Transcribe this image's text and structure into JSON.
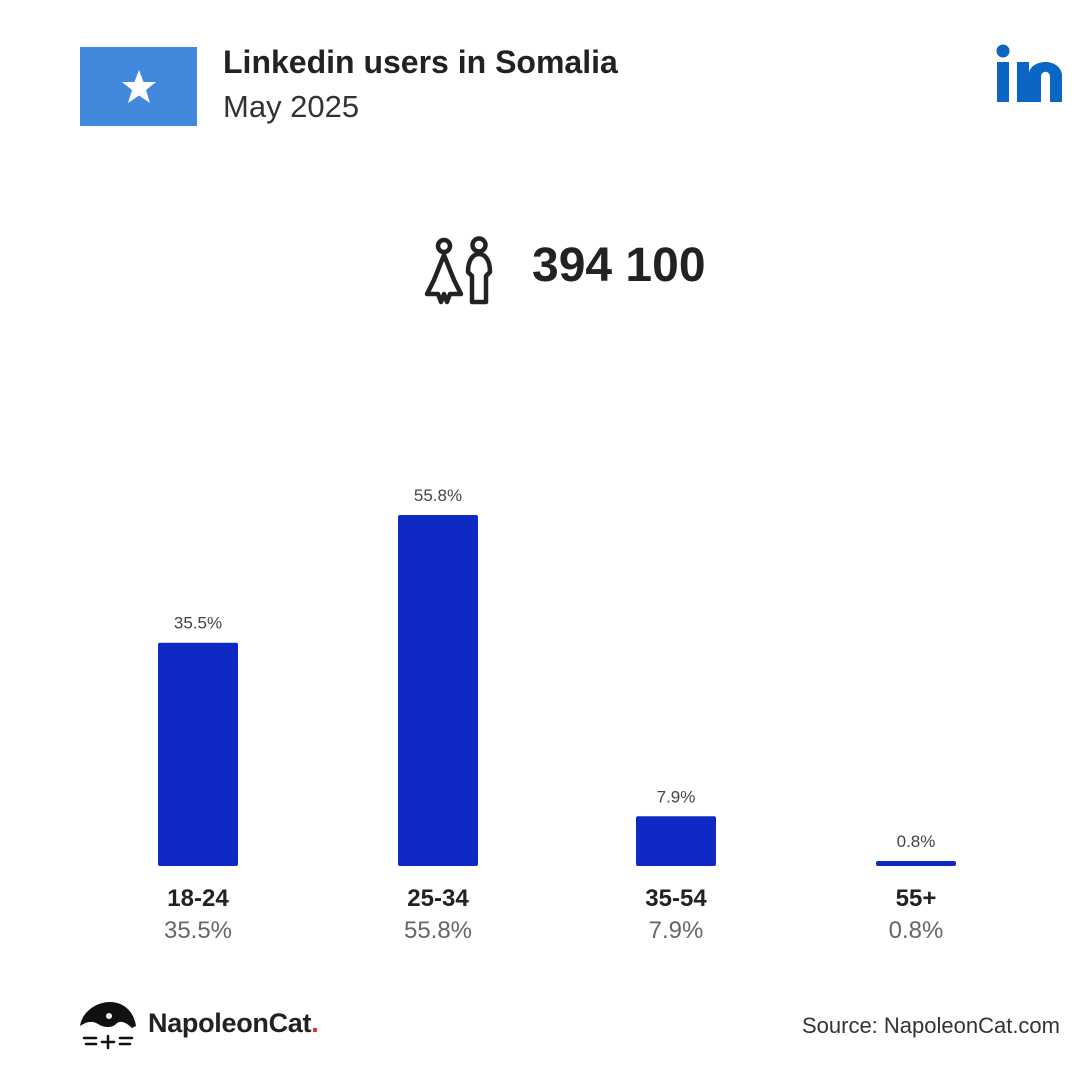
{
  "header": {
    "title": "Linkedin users in Somalia",
    "subtitle": "May 2025"
  },
  "flag": {
    "background": "#4189dd",
    "star": "#ffffff"
  },
  "logo_icon": "linkedin-logo",
  "total_users": "394 100",
  "total_icon": "users-icon",
  "chart_data": {
    "type": "bar",
    "categories": [
      "18-24",
      "25-34",
      "35-54",
      "55+"
    ],
    "values": [
      35.5,
      55.8,
      7.9,
      0.8
    ],
    "value_labels": [
      "35.5%",
      "55.8%",
      "7.9%",
      "0.8%"
    ],
    "ylim": [
      0,
      60
    ],
    "bar_color": "#0f2ac4",
    "grid": false,
    "title": "",
    "xlabel": "",
    "ylabel": ""
  },
  "footer": {
    "brand": "NapoleonCat",
    "brand_dot": ".",
    "brand_dot_color": "#e8262f",
    "source": "Source: NapoleonCat.com"
  }
}
